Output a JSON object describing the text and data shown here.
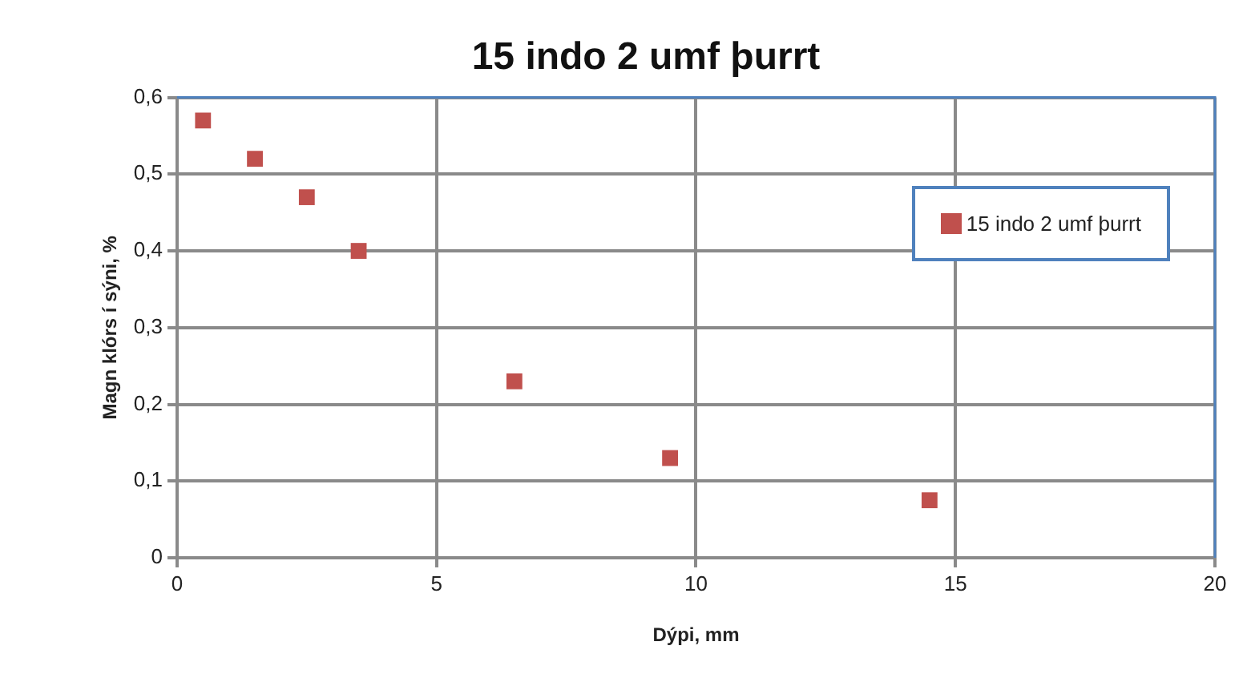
{
  "chart_data": {
    "type": "scatter",
    "title": "15 indo 2 umf þurrt",
    "xlabel": "Dýpi, mm",
    "ylabel": "Magn klórs í sýni, %",
    "series": [
      {
        "name": "15 indo 2 umf þurrt",
        "color": "#c0504d",
        "x": [
          0.5,
          1.5,
          2.5,
          3.5,
          6.5,
          9.5,
          14.5
        ],
        "values": [
          0.57,
          0.52,
          0.47,
          0.4,
          0.23,
          0.13,
          0.075
        ]
      }
    ],
    "xlim": [
      0,
      20
    ],
    "xticks": [
      0,
      5,
      10,
      15,
      20
    ],
    "ylim": [
      0,
      0.6
    ],
    "yticks": [
      0,
      {
        "value": 0.1,
        "label": "0,1"
      },
      {
        "value": 0.2,
        "label": "0,2"
      },
      {
        "value": 0.3,
        "label": "0,3"
      },
      {
        "value": 0.4,
        "label": "0,4"
      },
      {
        "value": 0.5,
        "label": "0,5"
      },
      {
        "value": 0.6,
        "label": "0,6"
      }
    ],
    "grid": true,
    "legend": "top right",
    "marker": "square"
  }
}
